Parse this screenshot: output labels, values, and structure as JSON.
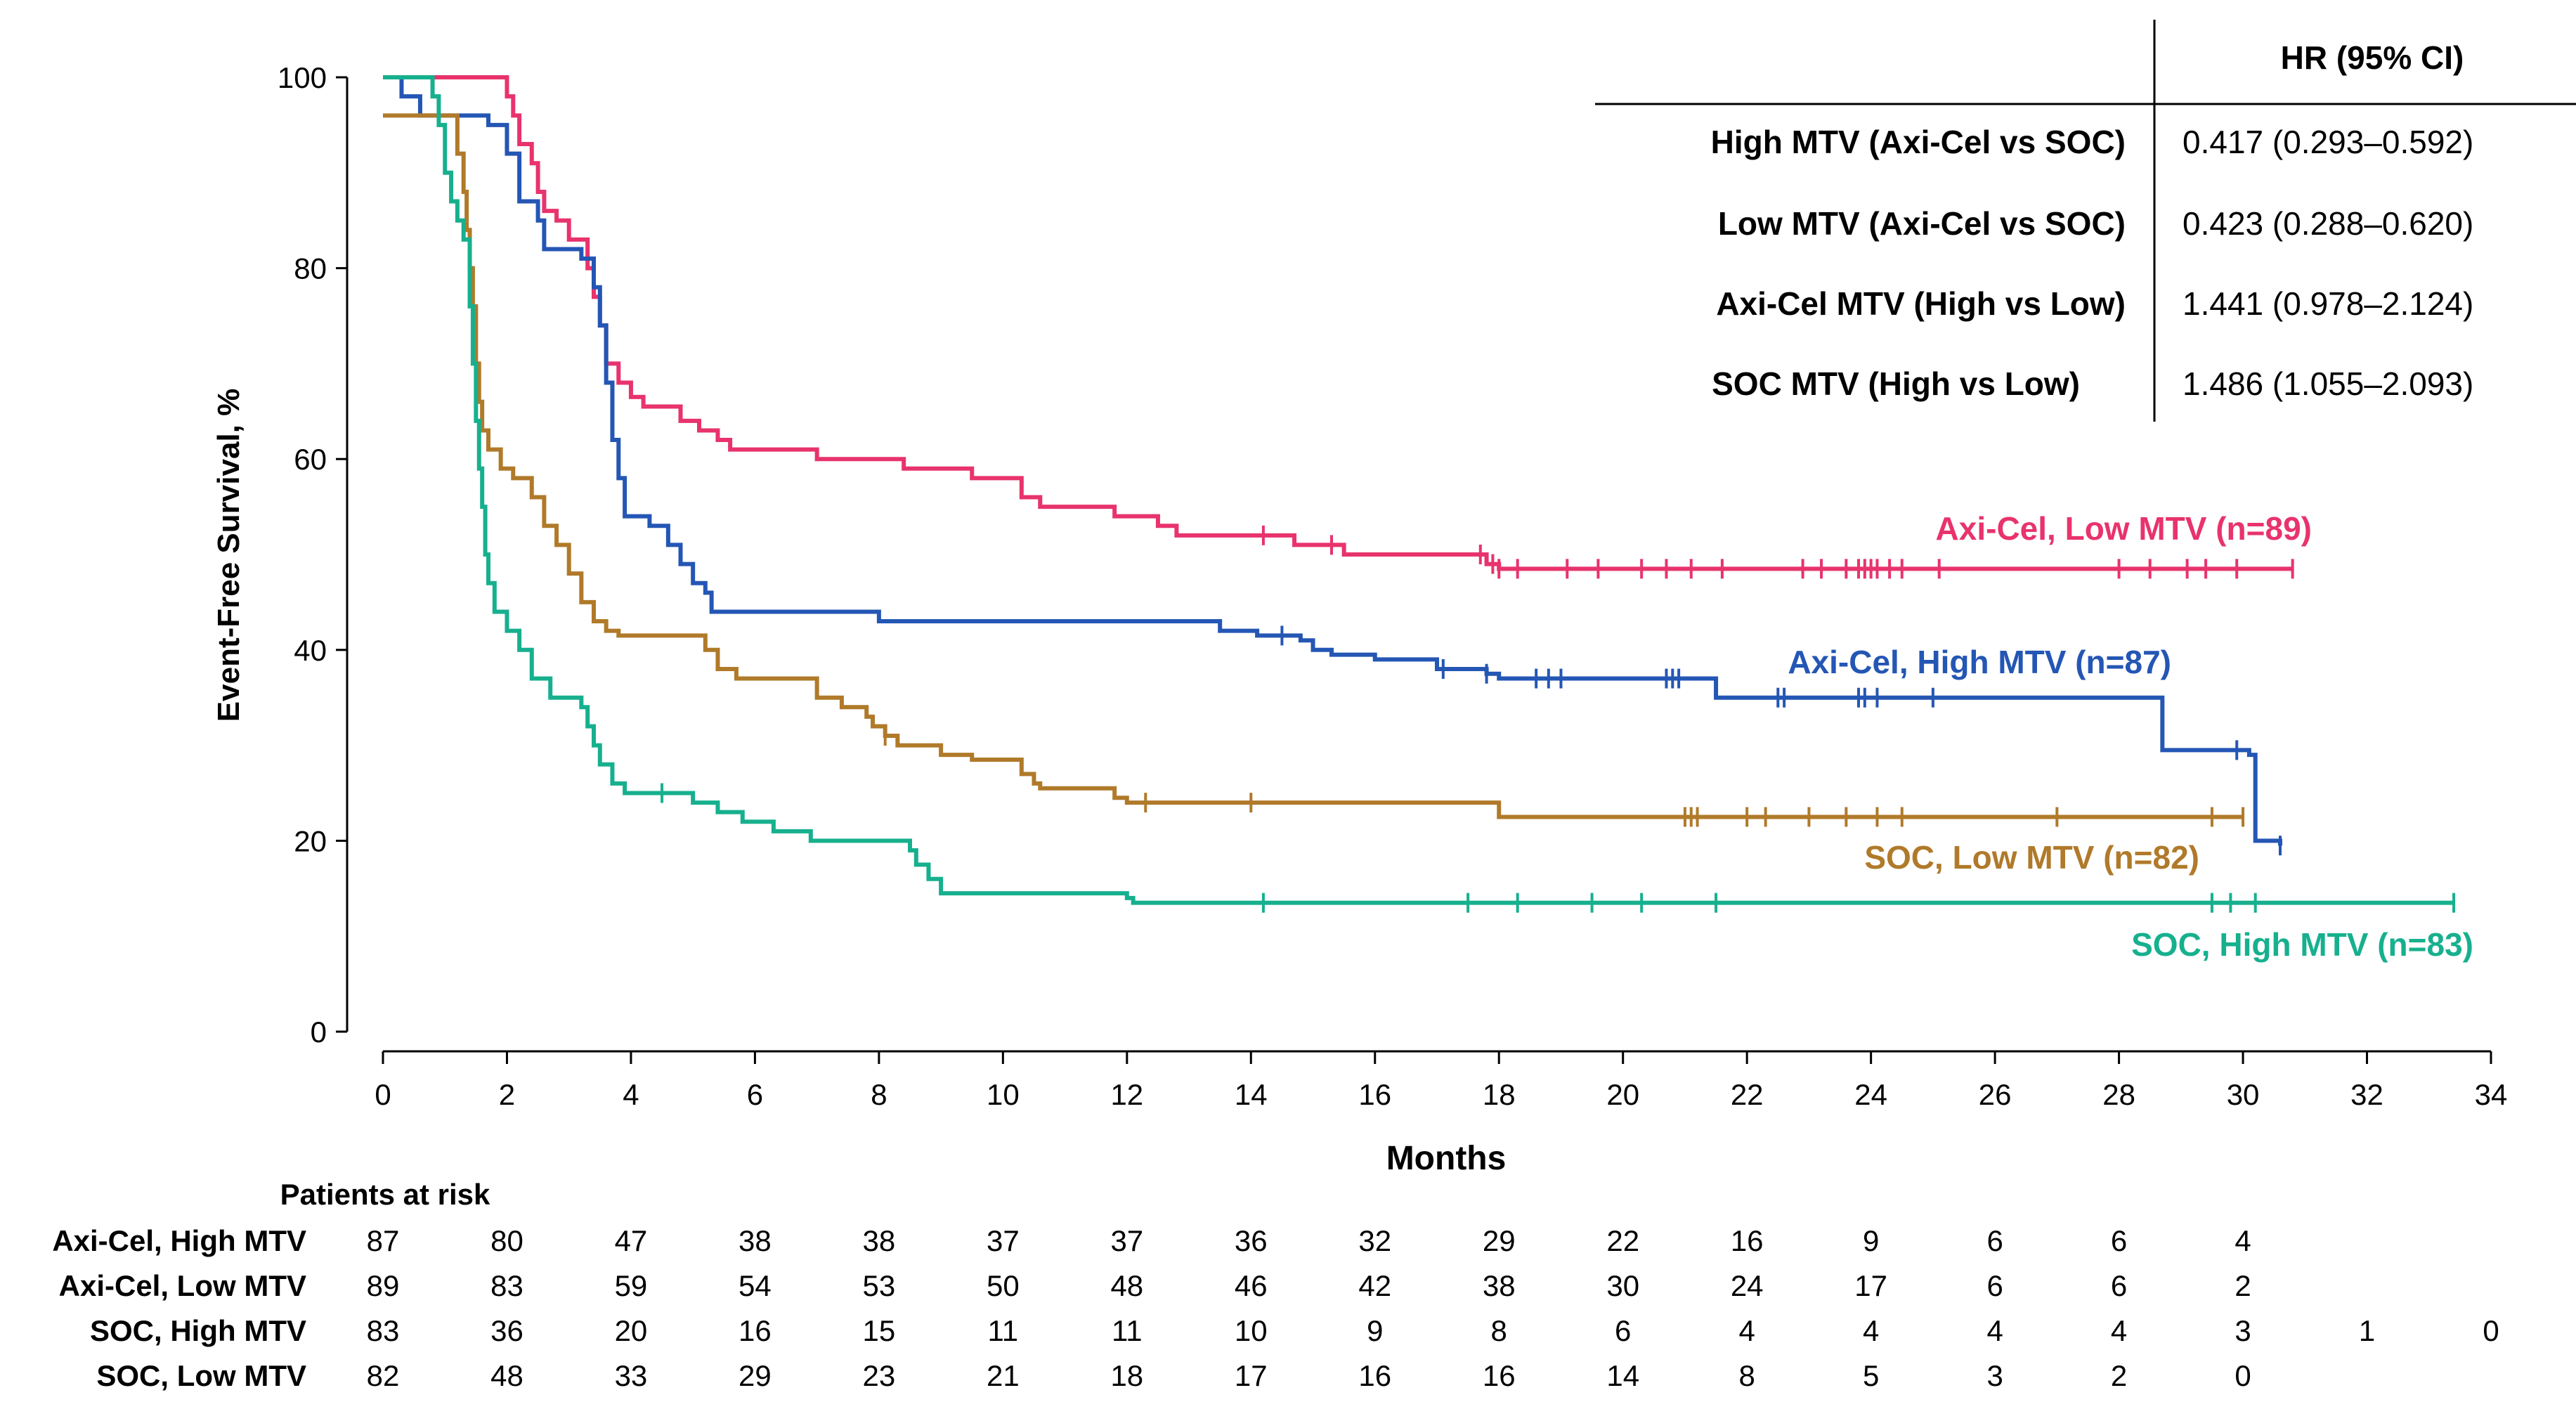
{
  "chart_data": {
    "type": "line",
    "xlabel": "Months",
    "ylabel": "Event-Free Survival, %",
    "xlim": [
      0,
      34
    ],
    "ylim": [
      0,
      100
    ],
    "x_ticks": [
      "0",
      "2",
      "4",
      "6",
      "8",
      "10",
      "12",
      "14",
      "16",
      "18",
      "20",
      "22",
      "24",
      "26",
      "28",
      "30",
      "32",
      "34"
    ],
    "y_ticks": [
      "0",
      "20",
      "40",
      "60",
      "80",
      "100"
    ],
    "series": [
      {
        "name": "Axi-Cel, Low MTV (n=89)",
        "color": "#e8336d",
        "points": [
          [
            0,
            100
          ],
          [
            1.95,
            100
          ],
          [
            2.0,
            98
          ],
          [
            2.1,
            96
          ],
          [
            2.2,
            93
          ],
          [
            2.4,
            91
          ],
          [
            2.5,
            88
          ],
          [
            2.6,
            86
          ],
          [
            2.8,
            85
          ],
          [
            3.0,
            83
          ],
          [
            3.3,
            80
          ],
          [
            3.4,
            77
          ],
          [
            3.5,
            74
          ],
          [
            3.6,
            70
          ],
          [
            3.8,
            68
          ],
          [
            4.0,
            66.5
          ],
          [
            4.2,
            65.5
          ],
          [
            4.8,
            64
          ],
          [
            5.1,
            63
          ],
          [
            5.4,
            62
          ],
          [
            5.6,
            61
          ],
          [
            7.0,
            60
          ],
          [
            8.4,
            59
          ],
          [
            9.5,
            58
          ],
          [
            10.3,
            56
          ],
          [
            10.6,
            55
          ],
          [
            11.8,
            54
          ],
          [
            12.5,
            53
          ],
          [
            12.8,
            52
          ],
          [
            14.7,
            51
          ],
          [
            15.5,
            50
          ],
          [
            17.8,
            49
          ],
          [
            18.0,
            48.5
          ],
          [
            30.8,
            48.5
          ]
        ],
        "censor_x": [
          14.2,
          15.3,
          17.7,
          17.9,
          18.0,
          18.3,
          19.1,
          19.6,
          20.3,
          20.7,
          21.1,
          21.6,
          22.9,
          23.2,
          23.6,
          23.8,
          23.9,
          24.0,
          24.1,
          24.3,
          24.5,
          25.1,
          28.0,
          28.5,
          29.1,
          29.4,
          29.9,
          30.8
        ]
      },
      {
        "name": "Axi-Cel, High MTV (n=87)",
        "color": "#2456b4",
        "points": [
          [
            0,
            100
          ],
          [
            0.3,
            98
          ],
          [
            0.6,
            96
          ],
          [
            1.7,
            95
          ],
          [
            2.0,
            92
          ],
          [
            2.2,
            87
          ],
          [
            2.5,
            85
          ],
          [
            2.6,
            82
          ],
          [
            3.2,
            81
          ],
          [
            3.4,
            78
          ],
          [
            3.5,
            74
          ],
          [
            3.6,
            68
          ],
          [
            3.7,
            62
          ],
          [
            3.8,
            58
          ],
          [
            3.9,
            54
          ],
          [
            4.3,
            53
          ],
          [
            4.6,
            51
          ],
          [
            4.8,
            49
          ],
          [
            5.0,
            47
          ],
          [
            5.2,
            46
          ],
          [
            5.3,
            44
          ],
          [
            8.0,
            43
          ],
          [
            13.5,
            42
          ],
          [
            14.1,
            41.5
          ],
          [
            14.8,
            41
          ],
          [
            15.0,
            40
          ],
          [
            15.3,
            39.5
          ],
          [
            16.0,
            39
          ],
          [
            17.0,
            38
          ],
          [
            17.8,
            37.5
          ],
          [
            18.0,
            37
          ],
          [
            21.5,
            35
          ],
          [
            28.6,
            35
          ],
          [
            28.7,
            29.5
          ],
          [
            30.1,
            29
          ],
          [
            30.2,
            20
          ],
          [
            30.6,
            19.5
          ]
        ],
        "censor_x": [
          14.5,
          17.1,
          17.8,
          18.6,
          18.8,
          19.0,
          20.7,
          20.8,
          20.9,
          22.5,
          22.6,
          23.8,
          23.9,
          24.1,
          25.0,
          29.9,
          30.6
        ]
      },
      {
        "name": "SOC, Low MTV (n=82)",
        "color": "#b07a2a",
        "points": [
          [
            0,
            96
          ],
          [
            1.0,
            96
          ],
          [
            1.2,
            92
          ],
          [
            1.3,
            88
          ],
          [
            1.35,
            84
          ],
          [
            1.4,
            80
          ],
          [
            1.45,
            76
          ],
          [
            1.5,
            70
          ],
          [
            1.55,
            66
          ],
          [
            1.6,
            63
          ],
          [
            1.7,
            61
          ],
          [
            1.9,
            59
          ],
          [
            2.1,
            58
          ],
          [
            2.4,
            56
          ],
          [
            2.6,
            53
          ],
          [
            2.8,
            51
          ],
          [
            3.0,
            48
          ],
          [
            3.2,
            45
          ],
          [
            3.4,
            43
          ],
          [
            3.6,
            42
          ],
          [
            3.8,
            41.5
          ],
          [
            5.2,
            40
          ],
          [
            5.4,
            38
          ],
          [
            5.7,
            37
          ],
          [
            7.0,
            35
          ],
          [
            7.4,
            34
          ],
          [
            7.8,
            33
          ],
          [
            7.9,
            32
          ],
          [
            8.1,
            31
          ],
          [
            8.3,
            30
          ],
          [
            9.0,
            29
          ],
          [
            9.5,
            28.5
          ],
          [
            10.3,
            27
          ],
          [
            10.5,
            26
          ],
          [
            10.6,
            25.5
          ],
          [
            11.8,
            24.5
          ],
          [
            12.0,
            24
          ],
          [
            18.0,
            22.5
          ],
          [
            30.0,
            22.5
          ]
        ],
        "censor_x": [
          8.1,
          12.3,
          14.0,
          21.0,
          21.1,
          21.2,
          22.0,
          22.3,
          23.0,
          23.6,
          24.1,
          24.5,
          27.0,
          29.5,
          30.0
        ]
      },
      {
        "name": "SOC, High MTV (n=83)",
        "color": "#17b08e",
        "points": [
          [
            0,
            100
          ],
          [
            0.5,
            100
          ],
          [
            0.8,
            98
          ],
          [
            0.9,
            95
          ],
          [
            1.0,
            90
          ],
          [
            1.1,
            87
          ],
          [
            1.2,
            85
          ],
          [
            1.3,
            83
          ],
          [
            1.4,
            76
          ],
          [
            1.45,
            70
          ],
          [
            1.5,
            64
          ],
          [
            1.55,
            59
          ],
          [
            1.6,
            55
          ],
          [
            1.65,
            50
          ],
          [
            1.7,
            47
          ],
          [
            1.8,
            44
          ],
          [
            2.0,
            42
          ],
          [
            2.2,
            40
          ],
          [
            2.4,
            37
          ],
          [
            2.7,
            35
          ],
          [
            3.2,
            34
          ],
          [
            3.3,
            32
          ],
          [
            3.4,
            30
          ],
          [
            3.5,
            28
          ],
          [
            3.7,
            26
          ],
          [
            3.9,
            25
          ],
          [
            5.0,
            24
          ],
          [
            5.4,
            23
          ],
          [
            5.8,
            22
          ],
          [
            6.3,
            21
          ],
          [
            6.9,
            20
          ],
          [
            8.5,
            19
          ],
          [
            8.6,
            17.5
          ],
          [
            8.8,
            16
          ],
          [
            9.0,
            14.5
          ],
          [
            12.0,
            14
          ],
          [
            12.1,
            13.5
          ],
          [
            33.4,
            13.5
          ]
        ],
        "censor_x": [
          4.5,
          14.2,
          17.5,
          18.3,
          19.5,
          20.3,
          21.5,
          29.5,
          29.8,
          30.2,
          33.4
        ]
      }
    ],
    "hr_table": {
      "header": "HR (95% CI)",
      "rows": [
        {
          "label": "High MTV (Axi-Cel vs SOC)",
          "value": "0.417 (0.293–0.592)"
        },
        {
          "label": "Low MTV (Axi-Cel vs SOC)",
          "value": "0.423 (0.288–0.620)"
        },
        {
          "label": "Axi-Cel MTV (High vs Low)",
          "value": "1.441 (0.978–2.124)"
        },
        {
          "label": "SOC MTV (High vs Low)",
          "value": "1.486 (1.055–2.093)"
        }
      ]
    },
    "risk_table": {
      "title": "Patients at risk",
      "rows": [
        {
          "label": "Axi-Cel, High MTV",
          "values": [
            "87",
            "80",
            "47",
            "38",
            "38",
            "37",
            "37",
            "36",
            "32",
            "29",
            "22",
            "16",
            "9",
            "6",
            "6",
            "4",
            "",
            ""
          ]
        },
        {
          "label": "Axi-Cel, Low MTV",
          "values": [
            "89",
            "83",
            "59",
            "54",
            "53",
            "50",
            "48",
            "46",
            "42",
            "38",
            "30",
            "24",
            "17",
            "6",
            "6",
            "2",
            "",
            ""
          ]
        },
        {
          "label": "SOC, High MTV",
          "values": [
            "83",
            "36",
            "20",
            "16",
            "15",
            "11",
            "11",
            "10",
            "9",
            "8",
            "6",
            "4",
            "4",
            "4",
            "4",
            "3",
            "1",
            "0"
          ]
        },
        {
          "label": "SOC, Low MTV",
          "values": [
            "82",
            "48",
            "33",
            "29",
            "23",
            "21",
            "18",
            "17",
            "16",
            "16",
            "14",
            "8",
            "5",
            "3",
            "2",
            "0",
            "",
            ""
          ]
        }
      ]
    }
  }
}
